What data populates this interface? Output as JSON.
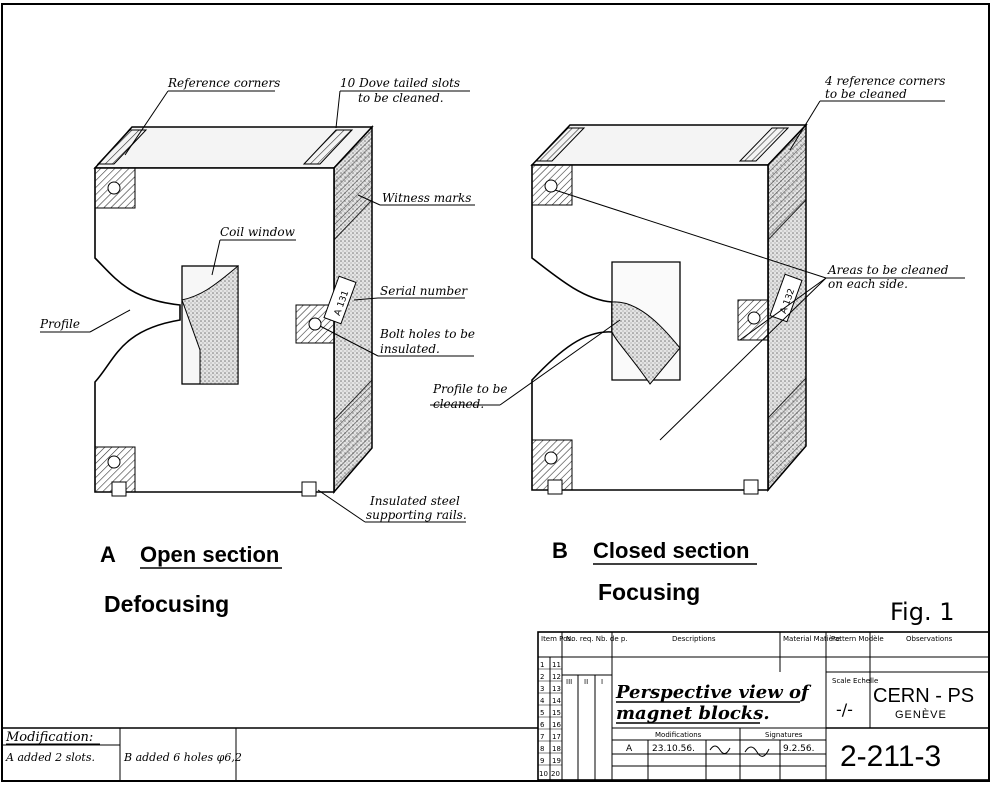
{
  "left_block": {
    "annotations": {
      "reference_corners": "Reference corners",
      "dove_slots_1": "10 Dove tailed slots",
      "dove_slots_2": "to be cleaned.",
      "witness_marks": "Witness marks",
      "coil_window": "Coil window",
      "profile": "Profile",
      "serial_number": "Serial number",
      "serial_plate": "A 131",
      "bolt_holes_1": "Bolt holes to be",
      "bolt_holes_2": "insulated.",
      "rails_1": "Insulated steel",
      "rails_2": "supporting rails."
    },
    "letter": "A",
    "section_title": "Open section",
    "caption": "Defocusing"
  },
  "right_block": {
    "annotations": {
      "ref_corners_1": "4 reference corners",
      "ref_corners_2": "to be cleaned",
      "areas_1": "Areas to be cleaned",
      "areas_2": "on each side.",
      "profile_1": "Profile to be",
      "profile_2": "cleaned.",
      "serial_plate": "A 132"
    },
    "letter": "B",
    "section_title": "Closed section",
    "caption": "Focusing"
  },
  "figure_label": "Fig. 1",
  "title_block": {
    "item_header": "Item Pos.",
    "noreq_header": "No. req. Nb. de p.",
    "descriptions_header": "Descriptions",
    "material_header": "Material Matière",
    "pattern_header": "Pattern Modèle",
    "observations_header": "Observations",
    "row_numbers_left": [
      "1",
      "2",
      "3",
      "4",
      "5",
      "6",
      "7",
      "8",
      "9",
      "10"
    ],
    "row_numbers_right": [
      "11",
      "12",
      "13",
      "14",
      "15",
      "16",
      "17",
      "18",
      "19",
      "20"
    ],
    "roman": [
      "III",
      "II",
      "I"
    ],
    "title_line1": "Perspective view of",
    "title_line2": "magnet blocks.",
    "modifications_header": "Modifications",
    "signatures_header": "Signatures",
    "mod_letter": "A",
    "mod_date": "23.10.56.",
    "sig_date": "9.2.56.",
    "scale_header": "Scale Echelle",
    "scale_value": "-/-",
    "org": "CERN - PS",
    "city": "GENÈVE",
    "drawing_number": "2-211-3"
  },
  "modification_box": {
    "header": "Modification:",
    "entry_a": "A added 2 slots.",
    "entry_b": "B added 6 holes φ6,2"
  }
}
